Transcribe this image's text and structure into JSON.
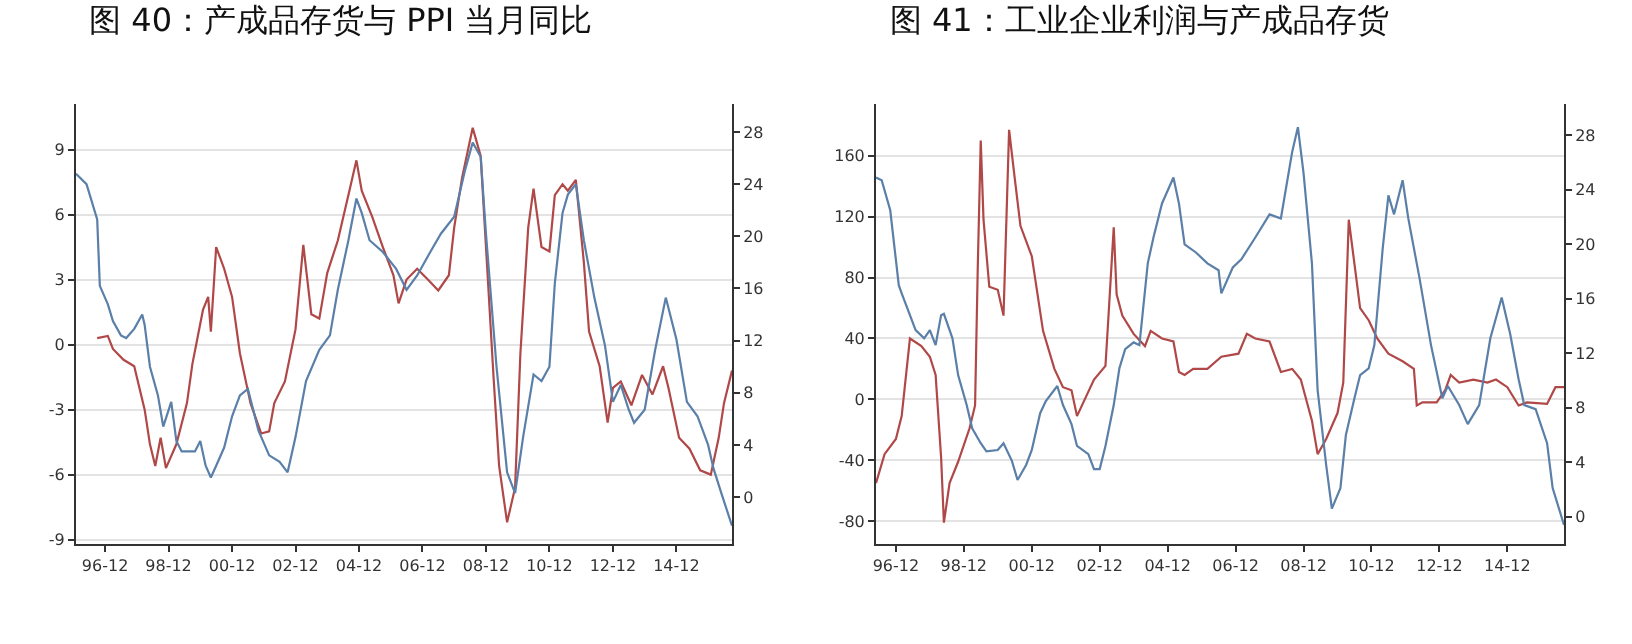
{
  "chart_data": [
    {
      "type": "line",
      "title": "图 40：产成品存货与 PPI 当月同比",
      "grid": "y",
      "marker": "none",
      "xlim": [
        "1996-01",
        "2016-09"
      ],
      "xticks": [
        {
          "value": "1996-12",
          "label": "96-12"
        },
        {
          "value": "1998-12",
          "label": "98-12"
        },
        {
          "value": "2000-12",
          "label": "00-12"
        },
        {
          "value": "2002-12",
          "label": "02-12"
        },
        {
          "value": "2004-12",
          "label": "04-12"
        },
        {
          "value": "2006-12",
          "label": "06-12"
        },
        {
          "value": "2008-12",
          "label": "08-12"
        },
        {
          "value": "2010-12",
          "label": "10-12"
        },
        {
          "value": "2012-12",
          "label": "12-12"
        },
        {
          "value": "2014-12",
          "label": "14-12"
        }
      ],
      "ylim": [
        -9.2,
        11.1
      ],
      "yticks": [
        -9,
        -6,
        -3,
        0,
        3,
        6,
        9
      ],
      "y2lim": [
        -3.6,
        30.15
      ],
      "y2ticks": [
        0,
        4,
        8,
        12,
        16,
        20,
        24,
        28
      ],
      "series": [
        {
          "color": "#5a7fa8",
          "axis": "y2",
          "x": [
            "1996-01",
            "1996-05",
            "1996-09",
            "1996-10",
            "1997-01",
            "1997-03",
            "1997-06",
            "1997-08",
            "1997-11",
            "1998-02",
            "1998-03",
            "1998-05",
            "1998-08",
            "1998-10",
            "1999-01",
            "1999-03",
            "1999-05",
            "1999-10",
            "1999-12",
            "2000-02",
            "2000-04",
            "2000-06",
            "2000-09",
            "2000-12",
            "2001-03",
            "2001-06",
            "2001-10",
            "2002-02",
            "2002-06",
            "2002-09",
            "2002-12",
            "2003-04",
            "2003-09",
            "2004-01",
            "2004-04",
            "2004-08",
            "2004-11",
            "2005-01",
            "2005-04",
            "2005-09",
            "2006-02",
            "2006-06",
            "2006-10",
            "2007-03",
            "2007-07",
            "2007-12",
            "2008-04",
            "2008-07",
            "2008-10",
            "2008-12",
            "2009-04",
            "2009-08",
            "2009-11",
            "2010-02",
            "2010-06",
            "2010-09",
            "2010-12",
            "2011-02",
            "2011-05",
            "2011-07",
            "2011-10",
            "2012-01",
            "2012-05",
            "2012-09",
            "2012-12",
            "2013-03",
            "2013-06",
            "2013-08",
            "2013-12",
            "2014-04",
            "2014-08",
            "2014-12",
            "2015-04",
            "2015-08",
            "2015-12",
            "2016-02",
            "2016-05",
            "2016-09"
          ],
          "values": [
            24.8,
            24.0,
            21.3,
            16.2,
            14.8,
            13.5,
            12.4,
            12.2,
            12.9,
            14.0,
            13.2,
            10.0,
            7.8,
            5.4,
            7.3,
            4.3,
            3.5,
            3.5,
            4.3,
            2.4,
            1.5,
            2.4,
            3.8,
            6.2,
            7.8,
            8.3,
            5.1,
            3.2,
            2.7,
            1.9,
            4.6,
            8.9,
            11.3,
            12.4,
            15.9,
            19.7,
            22.9,
            21.8,
            19.7,
            18.8,
            17.5,
            15.9,
            17.0,
            18.8,
            20.2,
            21.5,
            25.0,
            27.2,
            26.1,
            20.2,
            10.0,
            1.9,
            0.3,
            4.6,
            9.4,
            8.9,
            10.0,
            16.4,
            21.8,
            23.2,
            24.0,
            19.7,
            15.3,
            11.6,
            7.3,
            8.6,
            6.7,
            5.7,
            6.7,
            11.3,
            15.3,
            12.1,
            7.3,
            6.2,
            4.0,
            2.2,
            0.3,
            -2.2
          ]
        },
        {
          "color": "#b04848",
          "axis": "y",
          "x": [
            "1996-09",
            "1997-01",
            "1997-03",
            "1997-07",
            "1997-11",
            "1998-03",
            "1998-05",
            "1998-07",
            "1998-09",
            "1998-11",
            "1999-03",
            "1999-07",
            "1999-09",
            "2000-01",
            "2000-03",
            "2000-04",
            "2000-06",
            "2000-09",
            "2000-12",
            "2001-03",
            "2001-07",
            "2001-11",
            "2002-02",
            "2002-04",
            "2002-08",
            "2002-12",
            "2003-03",
            "2003-06",
            "2003-09",
            "2003-12",
            "2004-04",
            "2004-08",
            "2004-11",
            "2005-01",
            "2005-05",
            "2005-09",
            "2006-01",
            "2006-03",
            "2006-06",
            "2006-10",
            "2007-02",
            "2007-06",
            "2007-10",
            "2007-12",
            "2008-03",
            "2008-07",
            "2008-10",
            "2008-12",
            "2009-03",
            "2009-05",
            "2009-08",
            "2009-11",
            "2010-01",
            "2010-04",
            "2010-06",
            "2010-09",
            "2010-12",
            "2011-02",
            "2011-05",
            "2011-07",
            "2011-10",
            "2012-01",
            "2012-03",
            "2012-07",
            "2012-10",
            "2012-12",
            "2013-03",
            "2013-07",
            "2013-11",
            "2014-03",
            "2014-07",
            "2014-09",
            "2015-01",
            "2015-05",
            "2015-09",
            "2016-01",
            "2016-04",
            "2016-06",
            "2016-09"
          ],
          "values": [
            0.3,
            0.4,
            -0.2,
            -0.7,
            -1.0,
            -3.0,
            -4.6,
            -5.6,
            -4.3,
            -5.7,
            -4.6,
            -2.7,
            -0.9,
            1.6,
            2.2,
            0.6,
            4.5,
            3.5,
            2.2,
            -0.4,
            -2.7,
            -4.1,
            -4.0,
            -2.7,
            -1.7,
            0.7,
            4.6,
            1.4,
            1.2,
            3.3,
            4.8,
            6.9,
            8.5,
            7.1,
            5.9,
            4.5,
            3.2,
            1.9,
            3.0,
            3.5,
            3.0,
            2.5,
            3.2,
            5.4,
            7.7,
            10.0,
            8.7,
            4.5,
            -1.7,
            -5.6,
            -8.2,
            -6.6,
            -0.4,
            5.4,
            7.2,
            4.5,
            4.3,
            6.9,
            7.4,
            7.1,
            7.6,
            3.8,
            0.6,
            -1.0,
            -3.6,
            -2.0,
            -1.7,
            -2.8,
            -1.4,
            -2.3,
            -1.0,
            -2.0,
            -4.3,
            -4.8,
            -5.8,
            -6.0,
            -4.3,
            -2.7,
            -1.2
          ]
        }
      ]
    },
    {
      "type": "line",
      "title": "图 41：工业企业利润与产成品存货",
      "grid": "y",
      "marker": "none",
      "xlim": [
        "1996-05",
        "2016-08"
      ],
      "xticks": [
        {
          "value": "1996-12",
          "label": "96-12"
        },
        {
          "value": "1998-12",
          "label": "98-12"
        },
        {
          "value": "2000-12",
          "label": "00-12"
        },
        {
          "value": "2002-12",
          "label": "02-12"
        },
        {
          "value": "2004-12",
          "label": "04-12"
        },
        {
          "value": "2006-12",
          "label": "06-12"
        },
        {
          "value": "2008-12",
          "label": "08-12"
        },
        {
          "value": "2010-12",
          "label": "10-12"
        },
        {
          "value": "2012-12",
          "label": "12-12"
        },
        {
          "value": "2014-12",
          "label": "14-12"
        }
      ],
      "ylim": [
        -95,
        194
      ],
      "yticks": [
        -80,
        -40,
        0,
        40,
        80,
        120,
        160
      ],
      "y2lim": [
        -2.0,
        30.3
      ],
      "y2ticks": [
        0,
        4,
        8,
        12,
        16,
        20,
        24,
        28
      ],
      "series": [
        {
          "color": "#5a7fa8",
          "axis": "y2",
          "x": [
            "1996-05",
            "1996-07",
            "1996-10",
            "1997-01",
            "1997-02",
            "1997-05",
            "1997-07",
            "1997-10",
            "1997-12",
            "1998-02",
            "1998-04",
            "1998-05",
            "1998-08",
            "1998-10",
            "1999-01",
            "1999-03",
            "1999-06",
            "1999-08",
            "1999-12",
            "2000-02",
            "2000-05",
            "2000-07",
            "2000-10",
            "2000-12",
            "2001-03",
            "2001-05",
            "2001-09",
            "2001-11",
            "2002-02",
            "2002-04",
            "2002-08",
            "2002-10",
            "2002-12",
            "2003-02",
            "2003-05",
            "2003-07",
            "2003-09",
            "2003-12",
            "2004-02",
            "2004-05",
            "2004-07",
            "2004-10",
            "2005-02",
            "2005-04",
            "2005-06",
            "2005-10",
            "2006-02",
            "2006-06",
            "2006-07",
            "2006-11",
            "2007-02",
            "2007-07",
            "2007-12",
            "2008-04",
            "2008-08",
            "2008-10",
            "2008-12",
            "2009-03",
            "2009-05",
            "2009-08",
            "2009-10",
            "2010-01",
            "2010-03",
            "2010-06",
            "2010-08",
            "2010-11",
            "2011-01",
            "2011-04",
            "2011-06",
            "2011-08",
            "2011-11",
            "2012-01",
            "2012-05",
            "2012-09",
            "2013-01",
            "2013-03",
            "2013-07",
            "2013-10",
            "2014-02",
            "2014-06",
            "2014-10",
            "2015-01",
            "2015-04",
            "2015-06",
            "2015-10",
            "2016-02",
            "2016-04",
            "2016-08"
          ],
          "values": [
            24.9,
            24.7,
            22.5,
            17.0,
            16.4,
            14.8,
            13.7,
            13.1,
            13.7,
            12.6,
            14.8,
            14.9,
            13.1,
            10.4,
            8.2,
            6.5,
            5.4,
            4.8,
            4.9,
            5.4,
            4.1,
            2.7,
            3.8,
            4.9,
            7.6,
            8.5,
            9.6,
            8.2,
            6.8,
            5.2,
            4.6,
            3.5,
            3.5,
            5.2,
            8.2,
            10.9,
            12.3,
            12.8,
            12.6,
            18.6,
            20.5,
            23.0,
            24.9,
            23.0,
            20.0,
            19.4,
            18.6,
            18.1,
            16.4,
            18.3,
            18.9,
            20.5,
            22.2,
            21.9,
            26.8,
            28.6,
            25.2,
            18.6,
            9.3,
            3.8,
            0.6,
            2.1,
            6.0,
            8.7,
            10.4,
            10.9,
            12.6,
            19.7,
            23.6,
            22.2,
            24.7,
            21.9,
            17.5,
            12.6,
            8.7,
            9.6,
            8.2,
            6.8,
            8.2,
            13.1,
            16.1,
            13.4,
            10.1,
            8.2,
            7.9,
            5.4,
            2.1,
            -0.6
          ]
        },
        {
          "color": "#b04848",
          "axis": "y",
          "x": [
            "1996-05",
            "1996-08",
            "1996-12",
            "1997-02",
            "1997-05",
            "1997-09",
            "1997-12",
            "1998-02",
            "1998-04",
            "1998-05",
            "1998-07",
            "1998-10",
            "1999-02",
            "1999-04",
            "1999-05",
            "1999-06",
            "1999-07",
            "1999-09",
            "1999-12",
            "2000-02",
            "2000-04",
            "2000-06",
            "2000-08",
            "2000-12",
            "2001-04",
            "2001-08",
            "2001-11",
            "2002-02",
            "2002-04",
            "2002-07",
            "2002-10",
            "2003-02",
            "2003-03",
            "2003-05",
            "2003-06",
            "2003-08",
            "2003-12",
            "2004-04",
            "2004-06",
            "2004-10",
            "2005-02",
            "2005-04",
            "2005-06",
            "2005-09",
            "2006-02",
            "2006-07",
            "2007-01",
            "2007-04",
            "2007-07",
            "2007-12",
            "2008-04",
            "2008-08",
            "2008-11",
            "2009-03",
            "2009-05",
            "2009-08",
            "2009-12",
            "2010-02",
            "2010-04",
            "2010-06",
            "2010-08",
            "2010-11",
            "2011-02",
            "2011-06",
            "2011-11",
            "2012-03",
            "2012-04",
            "2012-06",
            "2012-11",
            "2013-02",
            "2013-04",
            "2013-07",
            "2013-12",
            "2014-05",
            "2014-08",
            "2014-12",
            "2015-04",
            "2015-07",
            "2016-02",
            "2016-05",
            "2016-08"
          ],
          "values": [
            -55,
            -36,
            -26,
            -11,
            40,
            35,
            28,
            16,
            -38,
            -81,
            -55,
            -41,
            -19,
            -4,
            89,
            170,
            118,
            74,
            72,
            55,
            177,
            145,
            114,
            94,
            45,
            20,
            8,
            6,
            -11,
            1,
            13,
            22,
            50,
            113,
            69,
            55,
            43,
            35,
            45,
            40,
            38,
            18,
            16,
            20,
            20,
            28,
            30,
            43,
            40,
            38,
            18,
            20,
            13,
            -14,
            -36,
            -26,
            -9,
            11,
            118,
            89,
            60,
            52,
            40,
            30,
            25,
            20,
            -4,
            -2,
            -2,
            6,
            16,
            11,
            13,
            11,
            13,
            8,
            -4,
            -2,
            -3,
            8,
            8
          ]
        }
      ]
    }
  ]
}
